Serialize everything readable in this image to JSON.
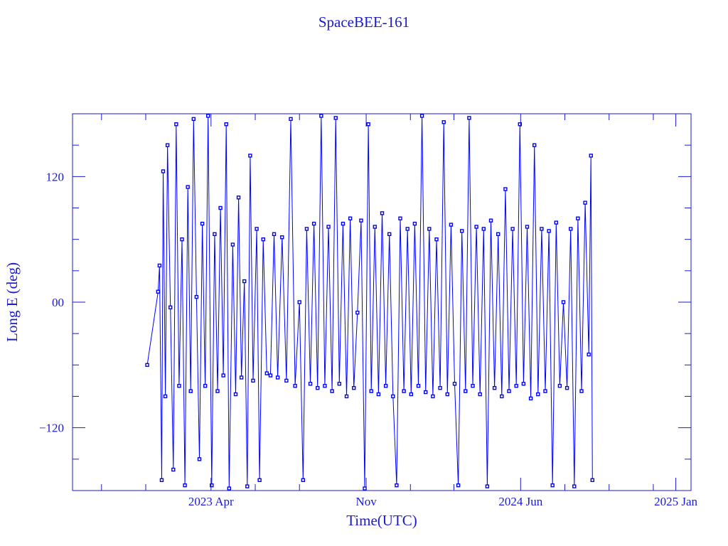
{
  "chart_data": {
    "type": "line",
    "title": "SpaceBEE-161",
    "xlabel": "Time(UTC)",
    "ylabel": "Long E (deg)",
    "xlim": [
      "2022-09-22",
      "2025-01-22"
    ],
    "ylim": [
      -180,
      180
    ],
    "grid": false,
    "markers": "square",
    "color": "#0000ff",
    "axis_color": "#1a1ad0",
    "x_ticks": [
      {
        "date": "2023-04-01",
        "label": "2023 Apr"
      },
      {
        "date": "2023-11-01",
        "label": "Nov"
      },
      {
        "date": "2024-06-01",
        "label": "2024 Jun"
      },
      {
        "date": "2025-01-01",
        "label": "2025 Jan"
      }
    ],
    "y_ticks": [
      {
        "value": 120,
        "label": "120"
      },
      {
        "value": 0,
        "label": "00"
      },
      {
        "value": -120,
        "label": "−120"
      }
    ],
    "series": [
      {
        "x": [
          "2023-01-03",
          "2023-01-18",
          "2023-01-20",
          "2023-01-23",
          "2023-01-25",
          "2023-01-28",
          "2023-01-31",
          "2023-02-04",
          "2023-02-08",
          "2023-02-12",
          "2023-02-16",
          "2023-02-20",
          "2023-02-24",
          "2023-02-28",
          "2023-03-04",
          "2023-03-08",
          "2023-03-12",
          "2023-03-16",
          "2023-03-20",
          "2023-03-24",
          "2023-03-28",
          "2023-04-02",
          "2023-04-06",
          "2023-04-10",
          "2023-04-14",
          "2023-04-18",
          "2023-04-22",
          "2023-04-26",
          "2023-05-01",
          "2023-05-05",
          "2023-05-09",
          "2023-05-13",
          "2023-05-17",
          "2023-05-21",
          "2023-05-25",
          "2023-05-29",
          "2023-06-03",
          "2023-06-07",
          "2023-06-12",
          "2023-06-17",
          "2023-06-22",
          "2023-06-27",
          "2023-07-02",
          "2023-07-08",
          "2023-07-14",
          "2023-07-20",
          "2023-07-26",
          "2023-08-01",
          "2023-08-06",
          "2023-08-11",
          "2023-08-16",
          "2023-08-21",
          "2023-08-26",
          "2023-08-31",
          "2023-09-05",
          "2023-09-10",
          "2023-09-15",
          "2023-09-20",
          "2023-09-25",
          "2023-09-30",
          "2023-10-05",
          "2023-10-10",
          "2023-10-15",
          "2023-10-20",
          "2023-10-25",
          "2023-10-30",
          "2023-11-04",
          "2023-11-08",
          "2023-11-13",
          "2023-11-18",
          "2023-11-23",
          "2023-11-28",
          "2023-12-03",
          "2023-12-08",
          "2023-12-13",
          "2023-12-18",
          "2023-12-23",
          "2023-12-28",
          "2024-01-02",
          "2024-01-07",
          "2024-01-12",
          "2024-01-17",
          "2024-01-22",
          "2024-01-27",
          "2024-02-01",
          "2024-02-06",
          "2024-02-11",
          "2024-02-16",
          "2024-02-21",
          "2024-02-26",
          "2024-03-02",
          "2024-03-07",
          "2024-03-12",
          "2024-03-17",
          "2024-03-22",
          "2024-03-27",
          "2024-04-01",
          "2024-04-06",
          "2024-04-11",
          "2024-04-16",
          "2024-04-21",
          "2024-04-26",
          "2024-05-01",
          "2024-05-06",
          "2024-05-11",
          "2024-05-16",
          "2024-05-21",
          "2024-05-26",
          "2024-05-31",
          "2024-06-05",
          "2024-06-10",
          "2024-06-15",
          "2024-06-20",
          "2024-06-25",
          "2024-06-30",
          "2024-07-05",
          "2024-07-10",
          "2024-07-15",
          "2024-07-20",
          "2024-07-25",
          "2024-07-30",
          "2024-08-04",
          "2024-08-09",
          "2024-08-14",
          "2024-08-19",
          "2024-08-24",
          "2024-08-29",
          "2024-09-03",
          "2024-09-06",
          "2024-09-08"
        ],
        "y": [
          -60,
          10,
          35,
          -170,
          125,
          -90,
          150,
          -5,
          -160,
          170,
          -80,
          60,
          -175,
          110,
          -85,
          175,
          5,
          -150,
          75,
          -80,
          178,
          -175,
          65,
          -85,
          90,
          -70,
          170,
          -178,
          55,
          -88,
          100,
          -72,
          20,
          -176,
          140,
          -75,
          70,
          -170,
          60,
          -68,
          -70,
          65,
          -72,
          62,
          -75,
          175,
          -80,
          0,
          -170,
          70,
          -78,
          75,
          -82,
          178,
          -80,
          72,
          -85,
          176,
          -78,
          75,
          -90,
          80,
          -82,
          -10,
          78,
          -178,
          170,
          -85,
          72,
          -88,
          85,
          -80,
          65,
          -90,
          -175,
          80,
          -85,
          70,
          -88,
          75,
          -80,
          178,
          -86,
          70,
          -90,
          60,
          -82,
          172,
          -88,
          74,
          -78,
          -175,
          68,
          -85,
          176,
          -80,
          72,
          -88,
          70,
          -176,
          78,
          -82,
          65,
          -90,
          108,
          -85,
          70,
          -80,
          170,
          -78,
          72,
          -92,
          150,
          -88,
          70,
          -85,
          68,
          -175,
          76,
          -80,
          0,
          -82,
          70,
          -176,
          80,
          -85,
          95,
          -50,
          140,
          -170
        ]
      }
    ]
  }
}
